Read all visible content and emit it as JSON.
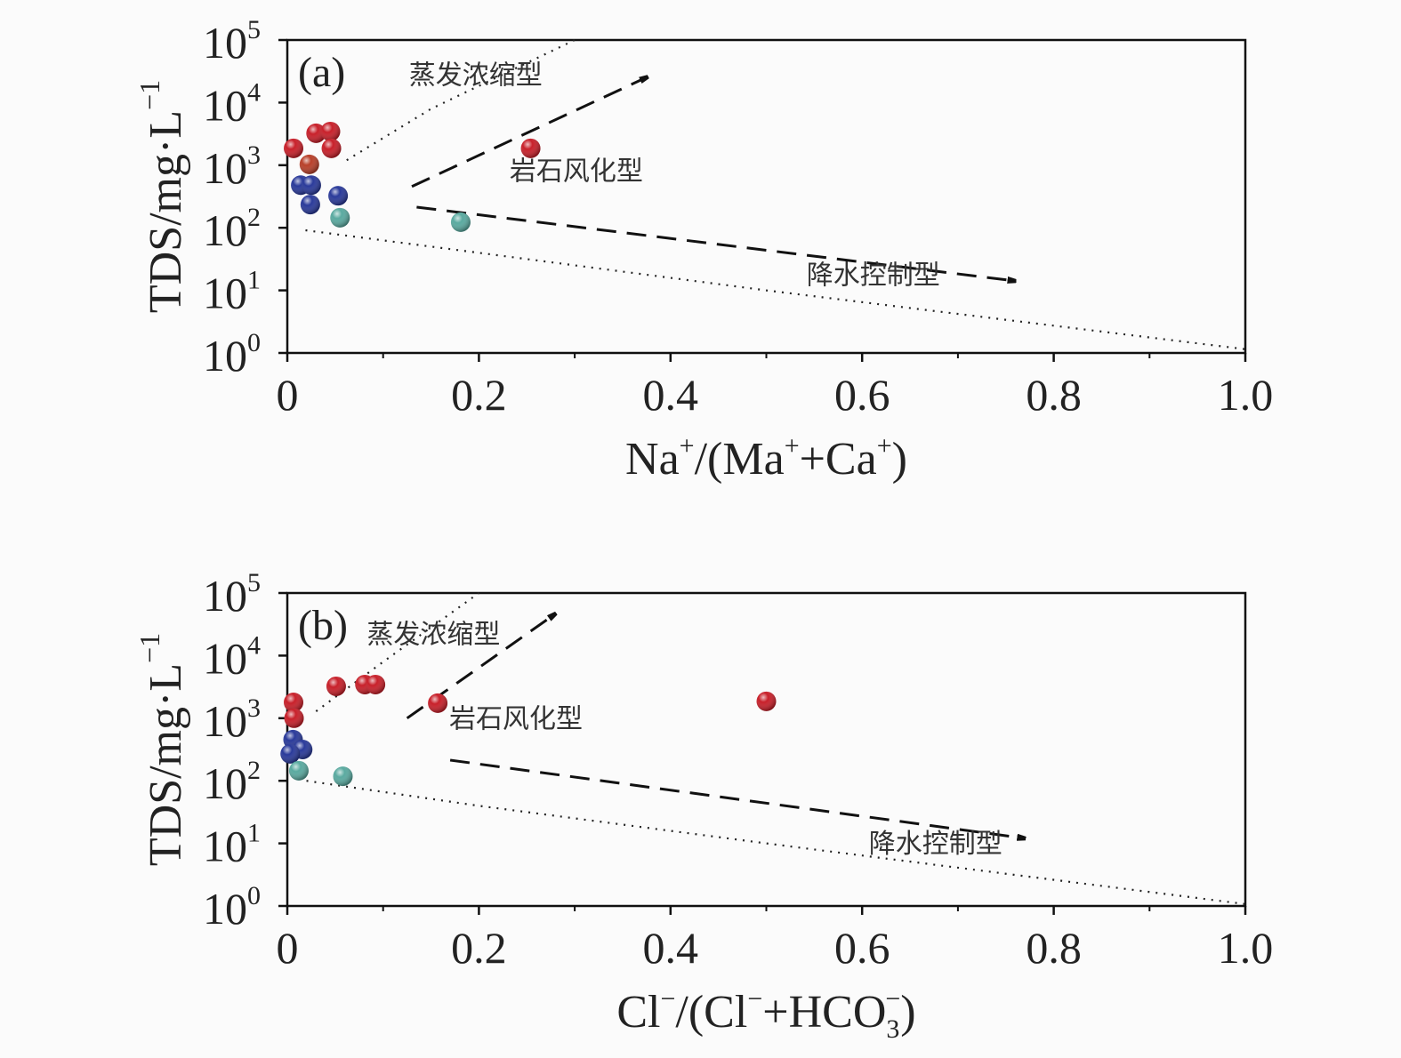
{
  "chart_data": [
    {
      "type": "scatter",
      "panel_label": "(a)",
      "xlabel_parts": [
        "Na",
        "+",
        "/(Ma",
        "+",
        "+Ca",
        "+",
        ")"
      ],
      "ylabel": "TDS/mg·L",
      "ylabel_sup": "−1",
      "xlim": [
        0,
        1.0
      ],
      "ylim_log10": [
        0,
        5
      ],
      "yscale": "log",
      "x_ticks": [
        "0",
        "0.2",
        "0.4",
        "0.6",
        "0.8",
        "1.0"
      ],
      "y_ticks": [
        {
          "base": "10",
          "exp": "0"
        },
        {
          "base": "10",
          "exp": "1"
        },
        {
          "base": "10",
          "exp": "2"
        },
        {
          "base": "10",
          "exp": "3"
        },
        {
          "base": "10",
          "exp": "4"
        },
        {
          "base": "10",
          "exp": "5"
        }
      ],
      "series": [
        {
          "name": "red",
          "color": "#c8202a",
          "points": [
            [
              0.0065,
              1860
            ],
            [
              0.03,
              3240
            ],
            [
              0.045,
              3450
            ],
            [
              0.046,
              1860
            ],
            [
              0.254,
              1860
            ]
          ]
        },
        {
          "name": "orange-red",
          "color": "#b8402a",
          "points": [
            [
              0.023,
              1030
            ]
          ]
        },
        {
          "name": "blue",
          "color": "#2a3a9a",
          "points": [
            [
              0.014,
              480
            ],
            [
              0.025,
              480
            ],
            [
              0.024,
              235
            ],
            [
              0.053,
              325
            ]
          ]
        },
        {
          "name": "teal",
          "color": "#5aaaa0",
          "points": [
            [
              0.055,
              145
            ],
            [
              0.181,
              123
            ]
          ]
        }
      ],
      "boundary_upper": [
        [
          0.062,
          3.08
        ],
        [
          0.15,
          3.9
        ],
        [
          0.3,
          5.0
        ]
      ],
      "boundary_lower": [
        [
          0.019,
          1.96
        ],
        [
          0.2,
          1.6
        ],
        [
          0.5,
          1.0
        ],
        [
          1.0,
          0.06
        ]
      ],
      "arrows": [
        [
          [
            0.13,
            2.66
          ],
          [
            0.376,
            4.41
          ]
        ],
        [
          [
            0.135,
            2.33
          ],
          [
            0.76,
            1.15
          ]
        ]
      ],
      "annotations": [
        {
          "text": "蒸发浓缩型",
          "x": 0.127,
          "y": 4.3
        },
        {
          "text": "岩石风化型",
          "x": 0.232,
          "y": 2.76
        },
        {
          "text": "降水控制型",
          "x": 0.542,
          "y": 1.1
        }
      ]
    },
    {
      "type": "scatter",
      "panel_label": "(b)",
      "xlabel_parts": [
        "Cl",
        "−",
        "/(Cl",
        "−",
        "+HCO",
        "3",
        "−",
        ")"
      ],
      "ylabel": "TDS/mg·L",
      "ylabel_sup": "−1",
      "xlim": [
        0,
        1.0
      ],
      "ylim_log10": [
        0,
        5
      ],
      "yscale": "log",
      "x_ticks": [
        "0",
        "0.2",
        "0.4",
        "0.6",
        "0.8",
        "1.0"
      ],
      "y_ticks": [
        {
          "base": "10",
          "exp": "0"
        },
        {
          "base": "10",
          "exp": "1"
        },
        {
          "base": "10",
          "exp": "2"
        },
        {
          "base": "10",
          "exp": "3"
        },
        {
          "base": "10",
          "exp": "4"
        },
        {
          "base": "10",
          "exp": "5"
        }
      ],
      "series": [
        {
          "name": "red",
          "color": "#c8202a",
          "points": [
            [
              0.0065,
              1790
            ],
            [
              0.007,
              1000
            ],
            [
              0.051,
              3230
            ],
            [
              0.081,
              3450
            ],
            [
              0.092,
              3450
            ],
            [
              0.157,
              1740
            ],
            [
              0.5,
              1860
            ]
          ]
        },
        {
          "name": "blue",
          "color": "#2a3a9a",
          "points": [
            [
              0.006,
              455
            ],
            [
              0.016,
              316
            ],
            [
              0.003,
              270
            ]
          ]
        },
        {
          "name": "teal",
          "color": "#5aaaa0",
          "points": [
            [
              0.012,
              145
            ],
            [
              0.058,
              118
            ]
          ]
        }
      ],
      "boundary_upper": [
        [
          0.03,
          3.11
        ],
        [
          0.1,
          3.9
        ],
        [
          0.2,
          5.0
        ]
      ],
      "boundary_lower": [
        [
          0.02,
          2.0
        ],
        [
          0.2,
          1.6
        ],
        [
          0.5,
          1.0
        ],
        [
          1.0,
          0.03
        ]
      ],
      "arrows": [
        [
          [
            0.125,
            3.0
          ],
          [
            0.28,
            4.67
          ]
        ],
        [
          [
            0.17,
            2.33
          ],
          [
            0.77,
            1.08
          ]
        ]
      ],
      "annotations": [
        {
          "text": "蒸发浓缩型",
          "x": 0.083,
          "y": 4.2
        },
        {
          "text": "岩石风化型",
          "x": 0.169,
          "y": 2.85
        },
        {
          "text": "降水控制型",
          "x": 0.607,
          "y": 0.85
        }
      ]
    }
  ]
}
